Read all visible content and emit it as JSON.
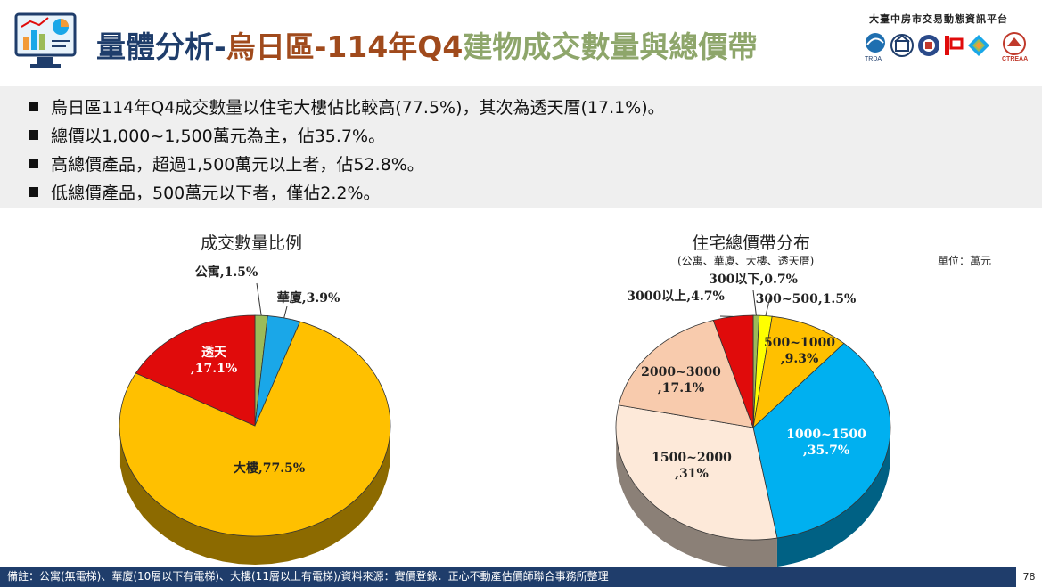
{
  "header": {
    "title_part1": "量體分析-",
    "title_part2": "烏日區-114年Q4",
    "title_part3": "建物成交數量與總價帶",
    "platform": "大臺中房市交易動態資訊平台",
    "org_logo_text": "TRDA",
    "org_logo_text2": "CTREAA",
    "colors": {
      "navy": "#1f3d6b",
      "rust": "#a04a1c",
      "olive": "#8ea66b"
    }
  },
  "summary": {
    "items": [
      "烏日區114年Q4成交數量以住宅大樓佔比較高(77.5%)，其次為透天厝(17.1%)。",
      "總價以1,000~1,500萬元為主，佔35.7%。",
      "高總價產品，超過1,500萬元以上者，佔52.8%。",
      "低總價產品，500萬元以下者，僅佔2.2%。"
    ]
  },
  "charts": {
    "left_title": "成交數量比例",
    "right_title": "住宅總價帶分布",
    "right_subtitle": "(公寓、華廈、大樓、透天厝)",
    "unit": "單位：萬元"
  },
  "chart_data": [
    {
      "type": "pie",
      "title": "成交數量比例",
      "slices": [
        {
          "label": "公寓",
          "value": 1.5,
          "display": "公寓,1.5%",
          "color": "#9bbb59"
        },
        {
          "label": "華廈",
          "value": 3.9,
          "display": "華廈,3.9%",
          "color": "#1aa7e8"
        },
        {
          "label": "大樓",
          "value": 77.5,
          "display": "大樓,77.5%",
          "color": "#ffc000"
        },
        {
          "label": "透天",
          "value": 17.1,
          "display": "透天\n,17.1%",
          "color": "#e00b0b"
        }
      ]
    },
    {
      "type": "pie",
      "title": "住宅總價帶分布",
      "subtitle": "(公寓、華廈、大樓、透天厝)",
      "slices": [
        {
          "label": "300以下",
          "value": 0.7,
          "display": "300以下,0.7%",
          "color": "#9bbb59"
        },
        {
          "label": "300~500",
          "value": 1.5,
          "display": "300~500,1.5%",
          "color": "#ffff00"
        },
        {
          "label": "500~1000",
          "value": 9.3,
          "display": "500~1000\n,9.3%",
          "color": "#ffc000"
        },
        {
          "label": "1000~1500",
          "value": 35.7,
          "display": "1000~1500\n,35.7%",
          "color": "#00b0f0"
        },
        {
          "label": "1500~2000",
          "value": 31,
          "display": "1500~2000\n,31%",
          "color": "#fde9d9"
        },
        {
          "label": "2000~3000",
          "value": 17.1,
          "display": "2000~3000\n,17.1%",
          "color": "#f8cbad"
        },
        {
          "label": "3000以上",
          "value": 4.7,
          "display": "3000以上,4.7%",
          "color": "#e00b0b"
        }
      ]
    }
  ],
  "footer": {
    "note": "備註：公寓(無電梯)、華廈(10層以下有電梯)、大樓(11層以上有電梯)/資料來源：實價登錄．正心不動產估價師聯合事務所整理",
    "page": "78"
  }
}
